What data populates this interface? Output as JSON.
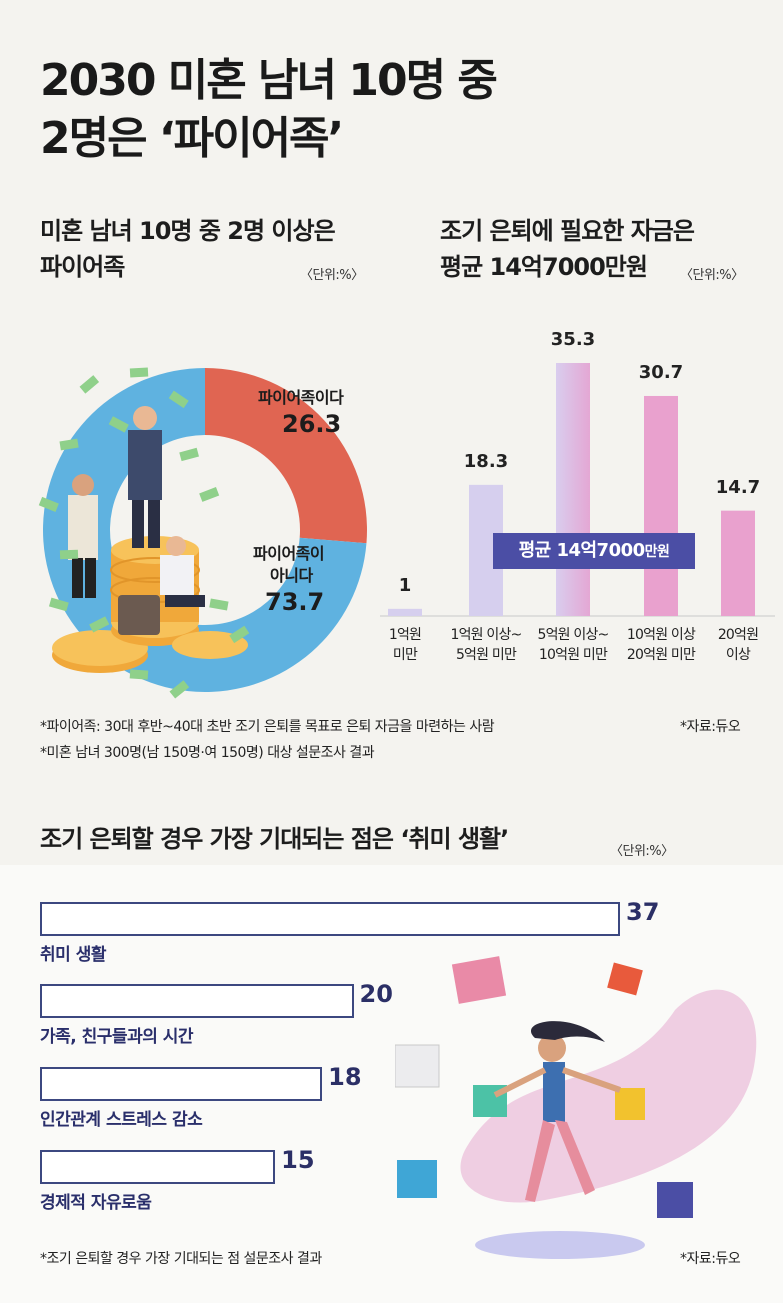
{
  "title": {
    "line1": "2030 미혼 남녀 10명 중",
    "line2": "2명은 ‘파이어족’"
  },
  "section1": {
    "title_line1": "미혼 남녀 10명 중 2명 이상은",
    "title_line2": "파이어족",
    "unit": "〈단위:%〉"
  },
  "section2": {
    "title_line1": "조기 은퇴에 필요한 자금은",
    "title_line2": "평균 14억7000만원",
    "unit": "〈단위:%〉",
    "average_label_a": "평균 14억7000",
    "average_label_b": "만원"
  },
  "section3": {
    "title": "조기 은퇴할 경우 가장 기대되는 점은 ‘취미 생활’",
    "unit": "〈단위:%〉"
  },
  "notes": {
    "fire_def": "*파이어족: 30대 후반~40대 초반 조기 은퇴를 목표로 은퇴 자금을 마련하는 사람",
    "survey1": "*미혼 남녀 300명(남 150명·여 150명) 대상 설문조사 결과",
    "source1": "*자료:듀오",
    "survey2": "*조기 은퇴할 경우 가장 기대되는 점 설문조사 결과",
    "source2": "*자료:듀오"
  },
  "colors": {
    "pie_yes": "#e06552",
    "pie_no": "#5fb2e0",
    "bar_light": "#d6cfee",
    "bar_pink": "#e9a1ce",
    "hbar_border": "#3c4880",
    "text_navy": "#2b2f66"
  },
  "chart_data": [
    {
      "type": "pie",
      "title": "미혼 남녀 10명 중 2명 이상은 파이어족",
      "unit": "%",
      "slices": [
        {
          "label_line1": "파이어족이다",
          "label_line2": "",
          "value": 26.3,
          "value_text": "26.3"
        },
        {
          "label_line1": "파이어족이",
          "label_line2": "아니다",
          "value": 73.7,
          "value_text": "73.7"
        }
      ]
    },
    {
      "type": "bar",
      "title": "조기 은퇴에 필요한 자금은 평균 14억7000만원",
      "unit": "%",
      "categories": [
        [
          "1억원",
          "미만"
        ],
        [
          "1억원 이상~",
          "5억원 미만"
        ],
        [
          "5억원 이상~",
          "10억원 미만"
        ],
        [
          "10억원 이상",
          "20억원 미만"
        ],
        [
          "20억원",
          "이상"
        ]
      ],
      "values": [
        1,
        18.3,
        35.3,
        30.7,
        14.7
      ],
      "value_labels": [
        "1",
        "18.3",
        "35.3",
        "30.7",
        "14.7"
      ],
      "ylim": [
        0,
        40
      ]
    },
    {
      "type": "bar",
      "orientation": "horizontal",
      "title": "조기 은퇴할 경우 가장 기대되는 점은 ‘취미 생활’",
      "unit": "%",
      "categories": [
        "취미 생활",
        "가족, 친구들과의 시간",
        "인간관계 스트레스 감소",
        "경제적 자유로움"
      ],
      "values": [
        37,
        20,
        18,
        15
      ],
      "value_labels": [
        "37",
        "20",
        "18",
        "15"
      ]
    }
  ]
}
